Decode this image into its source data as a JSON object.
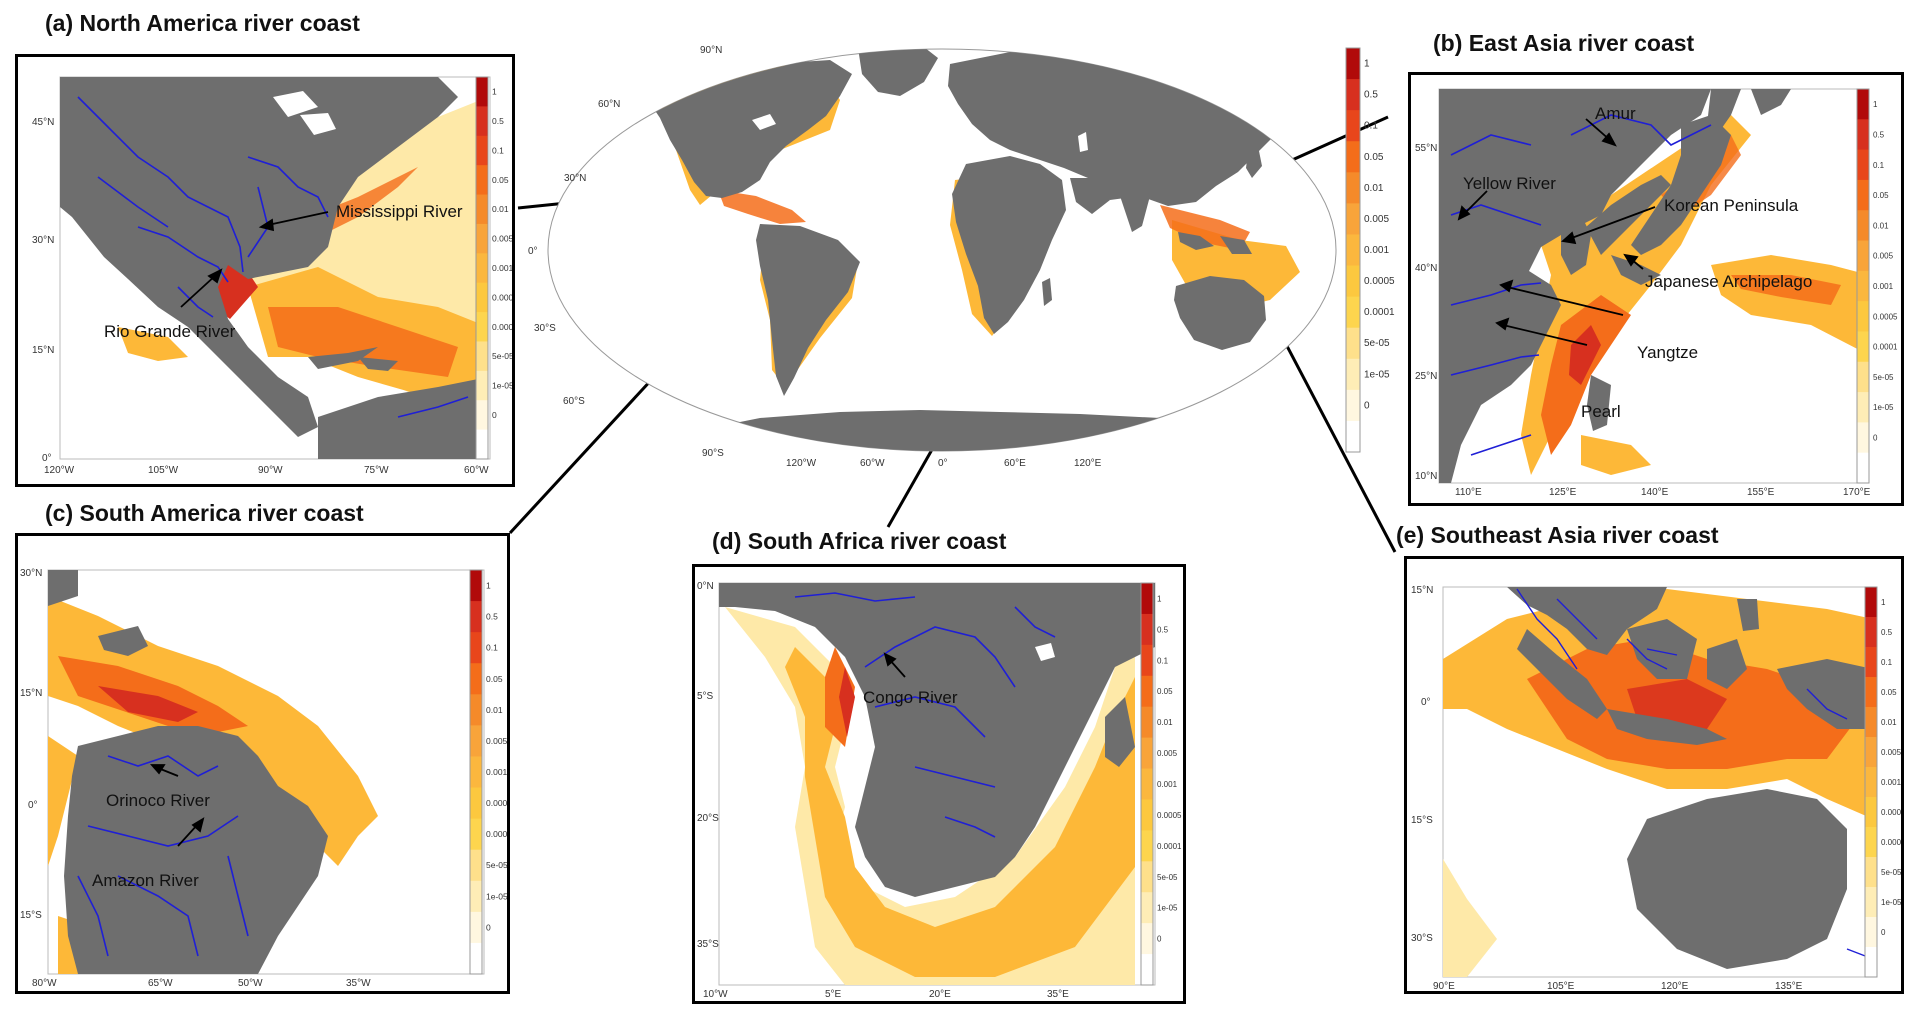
{
  "colors": {
    "land": "#6e6e6e",
    "river": "#1f1fd6",
    "lake": "#ffffff",
    "ocean": "#ffffff",
    "plume_high": "#d7301f",
    "plume_mid": "#f46d1a",
    "plume_low": "#fdb838",
    "plume_faint": "#fee9a8"
  },
  "colorbar": {
    "ticks": [
      "1",
      "0.5",
      "0.1",
      "0.05",
      "0.01",
      "0.005",
      "0.001",
      "0.0005",
      "0.0001",
      "5e-05",
      "1e-05",
      "0"
    ],
    "colors": [
      "#b10a0a",
      "#d7301f",
      "#e8461b",
      "#f46d1a",
      "#f58a2a",
      "#f8a43a",
      "#fbb73e",
      "#fcc83f",
      "#fdd54e",
      "#fee08b",
      "#feedb6",
      "#fff7e0",
      "#ffffff"
    ]
  },
  "world": {
    "lat_labels": [
      "90°N",
      "60°N",
      "30°N",
      "0°",
      "30°S",
      "60°S",
      "90°S"
    ],
    "lon_labels": [
      "120°W",
      "60°W",
      "0°",
      "60°E",
      "120°E"
    ]
  },
  "panels": {
    "a": {
      "title": "(a) North America river coast",
      "lat_labels": [
        "45°N",
        "30°N",
        "15°N",
        "0°"
      ],
      "lon_labels": [
        "120°W",
        "105°W",
        "90°W",
        "75°W",
        "60°W"
      ],
      "labels": [
        "Mississippi River",
        "Rio Grande River"
      ]
    },
    "b": {
      "title": "(b) East Asia river coast",
      "lat_labels": [
        "55°N",
        "40°N",
        "25°N",
        "10°N"
      ],
      "lon_labels": [
        "110°E",
        "125°E",
        "140°E",
        "155°E",
        "170°E"
      ],
      "labels": [
        "Amur",
        "Yellow River",
        "Korean Peninsula",
        "Japanese Archipelago",
        "Yangtze",
        "Pearl"
      ]
    },
    "c": {
      "title": "(c) South America river coast",
      "lat_labels": [
        "30°N",
        "15°N",
        "0°",
        "15°S"
      ],
      "lon_labels": [
        "80°W",
        "65°W",
        "50°W",
        "35°W"
      ],
      "labels": [
        "Orinoco River",
        "Amazon River"
      ]
    },
    "d": {
      "title": "(d) South Africa river coast",
      "lat_labels": [
        "0°N",
        "5°S",
        "20°S",
        "35°S"
      ],
      "lon_labels": [
        "10°W",
        "5°E",
        "20°E",
        "35°E"
      ],
      "labels": [
        "Congo River"
      ]
    },
    "e": {
      "title": "(e) Southeast Asia river coast",
      "lat_labels": [
        "15°N",
        "0°",
        "15°S",
        "30°S"
      ],
      "lon_labels": [
        "90°E",
        "105°E",
        "120°E",
        "135°E"
      ],
      "labels": []
    }
  }
}
